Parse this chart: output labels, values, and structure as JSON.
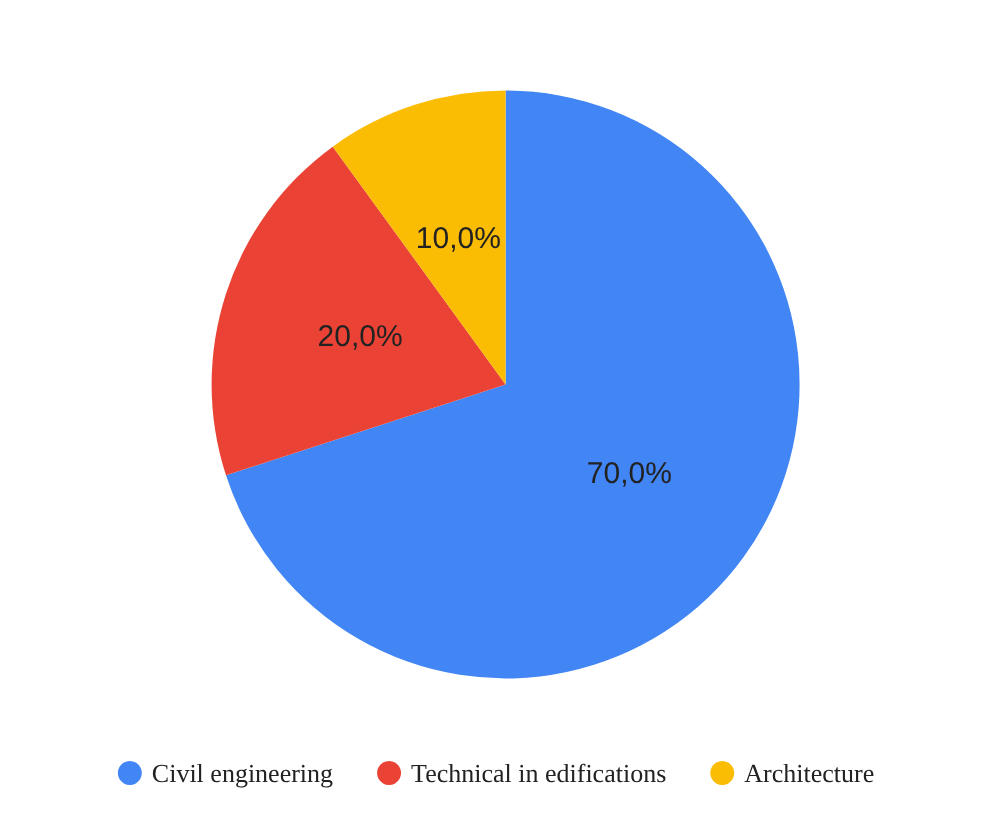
{
  "chart_data": {
    "type": "pie",
    "categories": [
      "Civil engineering",
      "Technical in edifications",
      "Architecture"
    ],
    "values": [
      70,
      20,
      10
    ],
    "colors": [
      "#4285f4",
      "#ea4335",
      "#fbbc04"
    ],
    "value_labels": [
      "70,0%",
      "20,0%",
      "10,0%"
    ],
    "legend": "bottom"
  }
}
